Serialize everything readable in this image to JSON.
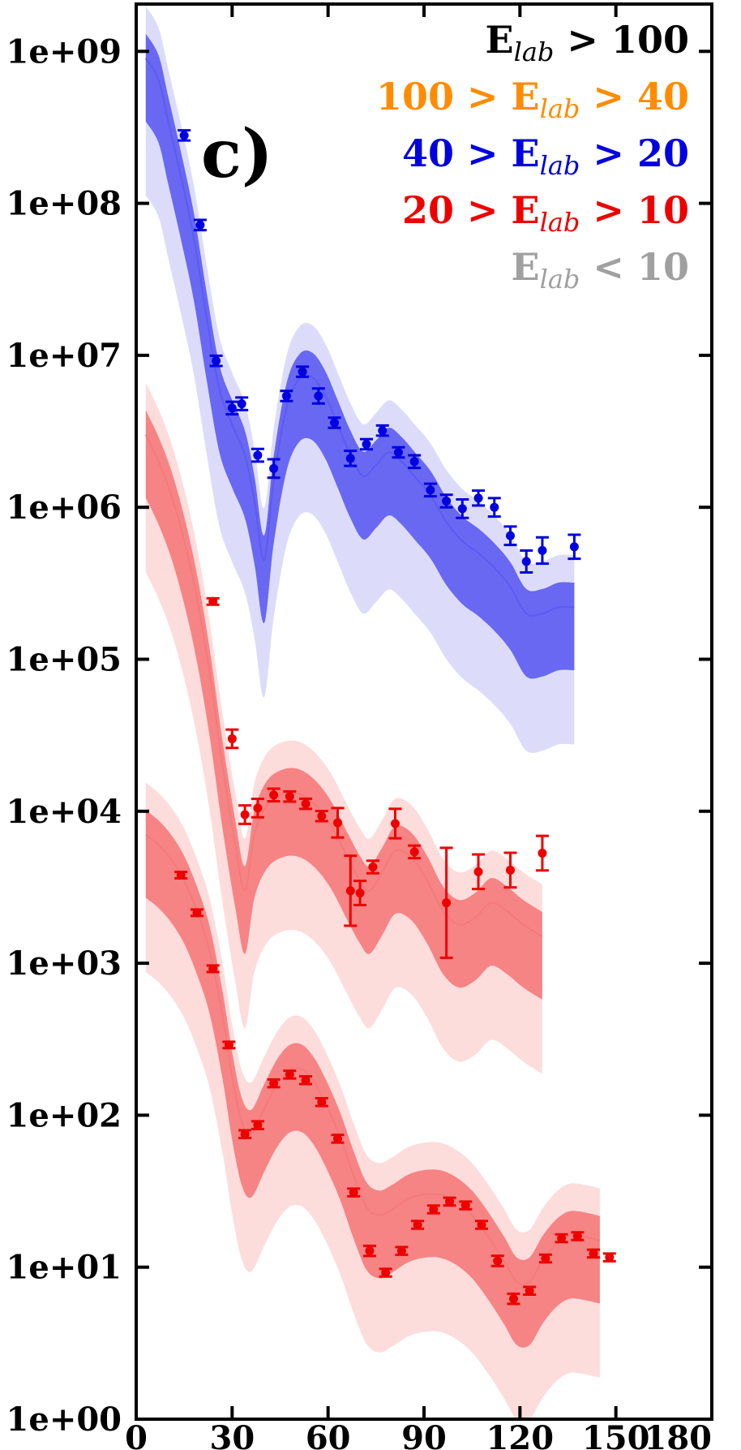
{
  "chart_data": {
    "type": "scatter",
    "panel_label": "c)",
    "x_axis": {
      "ticks": [
        0,
        30,
        60,
        90,
        120,
        150,
        180
      ],
      "tick_labels": [
        "0",
        "30",
        "60",
        "90",
        "120",
        "150",
        "180"
      ],
      "range": [
        0,
        180
      ]
    },
    "y_axis": {
      "scale": "log",
      "range": [
        1,
        2000000000
      ],
      "ticks": [
        1,
        10,
        100,
        1000,
        10000,
        100000,
        1000000,
        10000000,
        100000000,
        1000000000
      ],
      "tick_labels": [
        "1e+00",
        "1e+01",
        "1e+02",
        "1e+03",
        "1e+04",
        "1e+05",
        "1e+06",
        "1e+07",
        "1e+08",
        "1e+09"
      ]
    },
    "legend": {
      "placement": "top-right",
      "entries": [
        {
          "pre": "",
          "E": "E",
          "sub": "lab",
          "post": " > 100",
          "color": "#000000"
        },
        {
          "pre": "100 > ",
          "E": "E",
          "sub": "lab",
          "post": " > 40",
          "color": "#ff8c00"
        },
        {
          "pre": "40 > ",
          "E": "E",
          "sub": "lab",
          "post": " > 20",
          "color": "#0000e0"
        },
        {
          "pre": "20 > ",
          "E": "E",
          "sub": "lab",
          "post": " > 10",
          "color": "#ee0000"
        },
        {
          "pre": "",
          "E": "E",
          "sub": "lab",
          "post": " < 10",
          "color": "#a0a0a0"
        }
      ]
    },
    "series": [
      {
        "color": "#0000e0",
        "band_color": "#5b5bf2",
        "light_color": "#dcdcfa",
        "points": [
          [
            15,
            280000000,
            1.08
          ],
          [
            20,
            72000000,
            1.08
          ],
          [
            25,
            9200000,
            1.08
          ],
          [
            30,
            4500000,
            1.1
          ],
          [
            33,
            4800000,
            1.1
          ],
          [
            38,
            2200000,
            1.1
          ],
          [
            43,
            1800000,
            1.15
          ],
          [
            47,
            5400000,
            1.08
          ],
          [
            52,
            7800000,
            1.08
          ],
          [
            57,
            5400000,
            1.12
          ],
          [
            62,
            3600000,
            1.08
          ],
          [
            67,
            2100000,
            1.12
          ],
          [
            72,
            2600000,
            1.08
          ],
          [
            77,
            3200000,
            1.08
          ],
          [
            82,
            2300000,
            1.08
          ],
          [
            87,
            2000000,
            1.1
          ],
          [
            92,
            1300000,
            1.1
          ],
          [
            97,
            1100000,
            1.1
          ],
          [
            102,
            980000,
            1.15
          ],
          [
            107,
            1150000,
            1.12
          ],
          [
            112,
            1000000,
            1.15
          ],
          [
            117,
            650000,
            1.15
          ],
          [
            122,
            440000,
            1.18
          ],
          [
            127,
            520000,
            1.22
          ],
          [
            137,
            550000,
            1.2
          ]
        ],
        "curve": [
          [
            3,
            900000000
          ],
          [
            7,
            650000000
          ],
          [
            10,
            350000000
          ],
          [
            14,
            150000000
          ],
          [
            18,
            60000000
          ],
          [
            22,
            18000000
          ],
          [
            26,
            6000000
          ],
          [
            30,
            3500000
          ],
          [
            34,
            2200000
          ],
          [
            37,
            1100000
          ],
          [
            40,
            450000
          ],
          [
            43,
            1500000
          ],
          [
            47,
            4500000
          ],
          [
            51,
            7000000
          ],
          [
            55,
            7200000
          ],
          [
            59,
            5500000
          ],
          [
            63,
            3500000
          ],
          [
            67,
            2200000
          ],
          [
            71,
            1600000
          ],
          [
            75,
            1900000
          ],
          [
            79,
            2300000
          ],
          [
            83,
            2000000
          ],
          [
            87,
            1600000
          ],
          [
            92,
            1200000
          ],
          [
            97,
            800000
          ],
          [
            102,
            600000
          ],
          [
            107,
            500000
          ],
          [
            112,
            400000
          ],
          [
            117,
            300000
          ],
          [
            122,
            200000
          ],
          [
            127,
            200000
          ],
          [
            132,
            220000
          ],
          [
            137,
            220000
          ]
        ]
      },
      {
        "color": "#ee0000",
        "band_color": "#f57a7a",
        "light_color": "#fddcdc",
        "points": [
          [
            24,
            240000,
            1.05
          ],
          [
            30,
            30000,
            1.15
          ],
          [
            34,
            9500,
            1.15
          ],
          [
            38,
            10500,
            1.15
          ],
          [
            43,
            12800,
            1.1
          ],
          [
            48,
            12500,
            1.08
          ],
          [
            53,
            11200,
            1.08
          ],
          [
            58,
            9300,
            1.08
          ],
          [
            63,
            8400,
            1.25
          ],
          [
            67,
            3000,
            1.7
          ],
          [
            70,
            2900,
            1.2
          ],
          [
            74,
            4300,
            1.1
          ],
          [
            81,
            8300,
            1.25
          ],
          [
            87,
            5400,
            1.1
          ],
          [
            97,
            2500,
            2.3
          ],
          [
            107,
            4000,
            1.3
          ],
          [
            117,
            4100,
            1.3
          ],
          [
            127,
            5300,
            1.3
          ]
        ],
        "curve": [
          [
            3,
            3000000
          ],
          [
            7,
            2000000
          ],
          [
            11,
            1200000
          ],
          [
            15,
            600000
          ],
          [
            19,
            250000
          ],
          [
            23,
            80000
          ],
          [
            27,
            20000
          ],
          [
            31,
            6000
          ],
          [
            34,
            3000
          ],
          [
            37,
            7000
          ],
          [
            41,
            11000
          ],
          [
            46,
            13000
          ],
          [
            51,
            13000
          ],
          [
            56,
            11000
          ],
          [
            61,
            8000
          ],
          [
            66,
            5000
          ],
          [
            70,
            3500
          ],
          [
            73,
            3000
          ],
          [
            77,
            4000
          ],
          [
            81,
            5500
          ],
          [
            86,
            5000
          ],
          [
            91,
            3500
          ],
          [
            96,
            2200
          ],
          [
            101,
            1800
          ],
          [
            106,
            2000
          ],
          [
            111,
            2500
          ],
          [
            116,
            2200
          ],
          [
            121,
            1800
          ],
          [
            127,
            1500
          ]
        ]
      },
      {
        "color": "#ee0000",
        "band_color": "#f57a7a",
        "light_color": "#fddcdc",
        "points": [
          [
            14,
            3800,
            1.05
          ],
          [
            19,
            2150,
            1.05
          ],
          [
            24,
            920,
            1.05
          ],
          [
            29,
            290,
            1.05
          ],
          [
            34,
            75,
            1.06
          ],
          [
            38,
            86,
            1.06
          ],
          [
            43,
            162,
            1.06
          ],
          [
            48,
            185,
            1.06
          ],
          [
            53,
            170,
            1.06
          ],
          [
            58,
            122,
            1.06
          ],
          [
            63,
            70,
            1.06
          ],
          [
            68,
            31,
            1.06
          ],
          [
            73,
            12.8,
            1.08
          ],
          [
            78,
            9.2,
            1.06
          ],
          [
            83,
            12.8,
            1.06
          ],
          [
            88,
            19,
            1.06
          ],
          [
            93,
            24,
            1.06
          ],
          [
            98,
            27,
            1.06
          ],
          [
            103,
            25.5,
            1.06
          ],
          [
            108,
            19,
            1.06
          ],
          [
            113,
            11,
            1.08
          ],
          [
            118,
            6.2,
            1.08
          ],
          [
            123,
            7,
            1.06
          ],
          [
            128,
            11.4,
            1.06
          ],
          [
            133,
            15.5,
            1.06
          ],
          [
            138,
            16,
            1.06
          ],
          [
            143,
            12.3,
            1.06
          ],
          [
            148,
            11.6,
            1.06
          ]
        ],
        "curve": [
          [
            3,
            7000
          ],
          [
            7,
            6000
          ],
          [
            11,
            4800
          ],
          [
            15,
            3500
          ],
          [
            19,
            2200
          ],
          [
            23,
            1200
          ],
          [
            27,
            450
          ],
          [
            30,
            180
          ],
          [
            33,
            90
          ],
          [
            36,
            75
          ],
          [
            40,
            110
          ],
          [
            44,
            160
          ],
          [
            48,
            200
          ],
          [
            52,
            200
          ],
          [
            56,
            160
          ],
          [
            60,
            110
          ],
          [
            64,
            70
          ],
          [
            68,
            40
          ],
          [
            72,
            25
          ],
          [
            76,
            22
          ],
          [
            80,
            24
          ],
          [
            85,
            28
          ],
          [
            90,
            30
          ],
          [
            95,
            30
          ],
          [
            100,
            27
          ],
          [
            105,
            22
          ],
          [
            110,
            16
          ],
          [
            115,
            11
          ],
          [
            119,
            8
          ],
          [
            123,
            8
          ],
          [
            127,
            11
          ],
          [
            131,
            14
          ],
          [
            135,
            16
          ],
          [
            139,
            16
          ],
          [
            145,
            15
          ]
        ]
      }
    ]
  }
}
